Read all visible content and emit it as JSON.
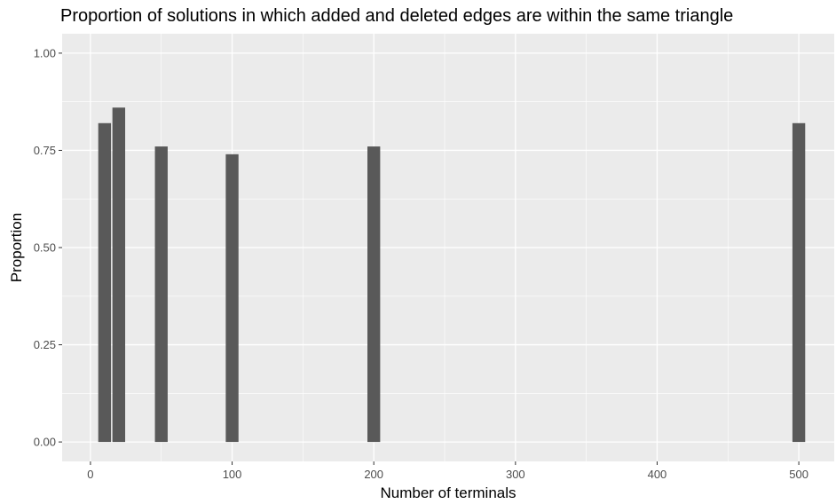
{
  "chart_data": {
    "type": "bar",
    "title": "Proportion of solutions in which added and deleted edges are within the same triangle",
    "xlabel": "Number of terminals",
    "ylabel": "Proportion",
    "x": [
      10,
      20,
      50,
      100,
      200,
      500
    ],
    "values": [
      0.82,
      0.86,
      0.76,
      0.74,
      0.76,
      0.82
    ],
    "xlim": [
      -20,
      525
    ],
    "ylim": [
      -0.05,
      1.05
    ],
    "x_ticks": [
      0,
      100,
      200,
      300,
      400,
      500
    ],
    "x_tick_labels": [
      "0",
      "100",
      "200",
      "300",
      "400",
      "500"
    ],
    "y_ticks": [
      0,
      0.25,
      0.5,
      0.75,
      1.0
    ],
    "y_tick_labels": [
      "0.00",
      "0.25",
      "0.50",
      "0.75",
      "1.00"
    ],
    "grid": true,
    "legend": "none",
    "colors": {
      "panel": "#ebebeb",
      "grid": "#ffffff",
      "bar": "#595959",
      "tick_label": "#4d4d4d",
      "text": "#000000"
    }
  }
}
